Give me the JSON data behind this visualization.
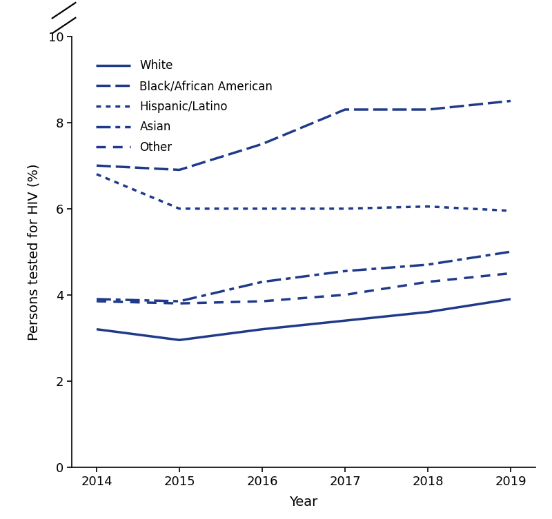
{
  "years": [
    2014,
    2015,
    2016,
    2017,
    2018,
    2019
  ],
  "series": [
    {
      "label": "White",
      "values": [
        3.2,
        2.95,
        3.2,
        3.4,
        3.6,
        3.9
      ],
      "linestyle": "solid",
      "linewidth": 2.5
    },
    {
      "label": "Black/African American",
      "values": [
        7.0,
        6.9,
        7.5,
        8.3,
        8.3,
        8.5
      ],
      "linestyle": "dashed",
      "linewidth": 2.5
    },
    {
      "label": "Hispanic/Latino",
      "values": [
        6.8,
        6.0,
        6.0,
        6.0,
        6.05,
        5.95
      ],
      "linestyle": "dotted",
      "linewidth": 2.5
    },
    {
      "label": "Asian",
      "values": [
        3.9,
        3.85,
        4.3,
        4.55,
        4.7,
        5.0
      ],
      "linestyle": "dashdot",
      "linewidth": 2.5
    },
    {
      "label": "Other",
      "values": [
        3.85,
        3.8,
        3.85,
        4.0,
        4.3,
        4.5
      ],
      "linestyle": "loosely_dashed",
      "linewidth": 2.5
    }
  ],
  "color": "#1F3A8A",
  "ylabel": "Persons tested for HIV (%)",
  "xlabel": "Year",
  "ylim": [
    0,
    10
  ],
  "yticks": [
    0,
    2,
    4,
    6,
    8,
    10
  ],
  "ytick_labels": [
    "0",
    "2",
    "4",
    "6",
    "8",
    "10"
  ],
  "background_color": "#ffffff"
}
